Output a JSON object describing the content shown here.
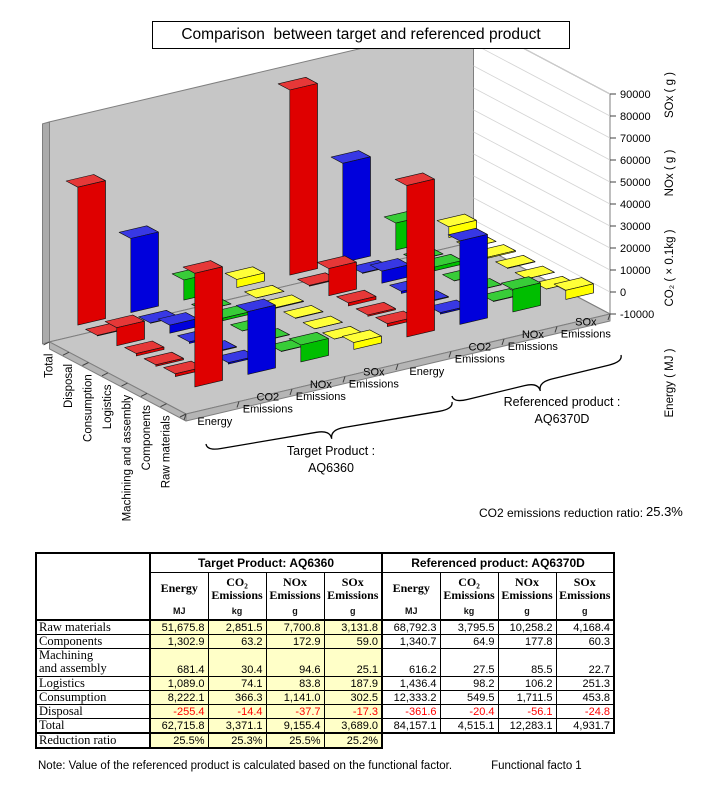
{
  "title": "Comparison  between target and referenced product",
  "chart_data": {
    "type": "bar",
    "style": "3d-column",
    "stages_front_to_back": [
      "Raw materials",
      "Components",
      "Machining and assembly",
      "Logistics",
      "Consumption",
      "Disposal",
      "Total"
    ],
    "value_axis": {
      "min": -10000,
      "max": 90000,
      "step": 10000
    },
    "unit_axis_labels": [
      "SOx ( g )",
      "NOx ( g )",
      "CO₂ ( × 0.1kg )",
      "Energy ( MJ )"
    ],
    "series_note": "CO2 bars are plotted in 0.1 kg units (kg × 10); stage order matches stages_front_to_back",
    "groups": [
      {
        "product": "AQ6360",
        "measure": "Energy",
        "label_lines": [
          "Energy"
        ],
        "color": "#DF0000",
        "values": [
          51675.8,
          1302.9,
          681.4,
          1089.0,
          8222.1,
          -255.4,
          62715.8
        ]
      },
      {
        "product": "AQ6360",
        "measure": "CO2 Emissions",
        "label_lines": [
          "CO2",
          "Emissions"
        ],
        "color": "#0000DC",
        "values": [
          28515,
          632,
          304,
          741,
          3663,
          -144,
          33711
        ]
      },
      {
        "product": "AQ6360",
        "measure": "NOx Emissions",
        "label_lines": [
          "NOx",
          "Emissions"
        ],
        "color": "#00BE00",
        "values": [
          7700.8,
          172.9,
          94.6,
          83.8,
          1141.0,
          -37.7,
          9155.4
        ]
      },
      {
        "product": "AQ6360",
        "measure": "SOx Emissions",
        "label_lines": [
          "SOx",
          "Emissions"
        ],
        "color": "#FFFF00",
        "values": [
          3131.8,
          59.0,
          25.1,
          187.9,
          302.5,
          -17.3,
          3689.0
        ]
      },
      {
        "product": "AQ6370D",
        "measure": "Energy",
        "label_lines": [
          "Energy"
        ],
        "color": "#DF0000",
        "values": [
          68792.3,
          1340.7,
          616.2,
          1436.4,
          12333.2,
          -361.6,
          84157.1
        ]
      },
      {
        "product": "AQ6370D",
        "measure": "CO2 Emissions",
        "label_lines": [
          "CO2",
          "Emissions"
        ],
        "color": "#0000DC",
        "values": [
          37955,
          649,
          275,
          982,
          5495,
          -204,
          45151
        ]
      },
      {
        "product": "AQ6370D",
        "measure": "NOx Emissions",
        "label_lines": [
          "NOx",
          "Emissions"
        ],
        "color": "#00BE00",
        "values": [
          10258.2,
          177.8,
          85.5,
          106.2,
          1711.5,
          -56.1,
          12283.1
        ]
      },
      {
        "product": "AQ6370D",
        "measure": "SOx Emissions",
        "label_lines": [
          "SOx",
          "Emissions"
        ],
        "color": "#FFFF00",
        "values": [
          4168.4,
          60.3,
          22.7,
          251.3,
          453.8,
          -24.8,
          4931.7
        ]
      }
    ],
    "braces": [
      {
        "label_lines": [
          "Target Product :",
          "AQ6360"
        ]
      },
      {
        "label_lines": [
          "Referenced product :",
          "AQ6370D"
        ]
      }
    ],
    "reduction": {
      "label": "CO2 emissions reduction ratio:",
      "value": "25.3%"
    }
  },
  "table": {
    "group_titles": [
      "Target Product: AQ6360",
      "Referenced product: AQ6370D"
    ],
    "measure_headers": [
      [
        "Energy"
      ],
      [
        "CO₂",
        "Emissions"
      ],
      [
        "NOx",
        "Emissions"
      ],
      [
        "SOx",
        "Emissions"
      ]
    ],
    "units": [
      "MJ",
      "kg",
      "g",
      "g"
    ],
    "rows": [
      {
        "label_lines": [
          "Raw materials"
        ],
        "target": [
          "51,675.8",
          "2,851.5",
          "7,700.8",
          "3,131.8"
        ],
        "referenced": [
          "68,792.3",
          "3,795.5",
          "10,258.2",
          "4,168.4"
        ]
      },
      {
        "label_lines": [
          "Components"
        ],
        "target": [
          "1,302.9",
          "63.2",
          "172.9",
          "59.0"
        ],
        "referenced": [
          "1,340.7",
          "64.9",
          "177.8",
          "60.3"
        ]
      },
      {
        "label_lines": [
          "Machining",
          "and assembly"
        ],
        "target": [
          "681.4",
          "30.4",
          "94.6",
          "25.1"
        ],
        "referenced": [
          "616.2",
          "27.5",
          "85.5",
          "22.7"
        ]
      },
      {
        "label_lines": [
          "Logistics"
        ],
        "target": [
          "1,089.0",
          "74.1",
          "83.8",
          "187.9"
        ],
        "referenced": [
          "1,436.4",
          "98.2",
          "106.2",
          "251.3"
        ]
      },
      {
        "label_lines": [
          "Consumption"
        ],
        "target": [
          "8,222.1",
          "366.3",
          "1,141.0",
          "302.5"
        ],
        "referenced": [
          "12,333.2",
          "549.5",
          "1,711.5",
          "453.8"
        ]
      },
      {
        "label_lines": [
          "Disposal"
        ],
        "target": [
          "-255.4",
          "-14.4",
          "-37.7",
          "-17.3"
        ],
        "referenced": [
          "-361.6",
          "-20.4",
          "-56.1",
          "-24.8"
        ]
      },
      {
        "label_lines": [
          "Total"
        ],
        "target": [
          "62,715.8",
          "3,371.1",
          "9,155.4",
          "3,689.0"
        ],
        "referenced": [
          "84,157.1",
          "4,515.1",
          "12,283.1",
          "4,931.7"
        ]
      }
    ],
    "reduction_row": {
      "label": "Reduction ratio",
      "values": [
        "25.5%",
        "25.3%",
        "25.5%",
        "25.2%"
      ]
    }
  },
  "note": {
    "main": "Note: Value of the referenced product is calculated based on the functional factor.",
    "factor_label": "Functional facto",
    "factor_value": "1"
  }
}
